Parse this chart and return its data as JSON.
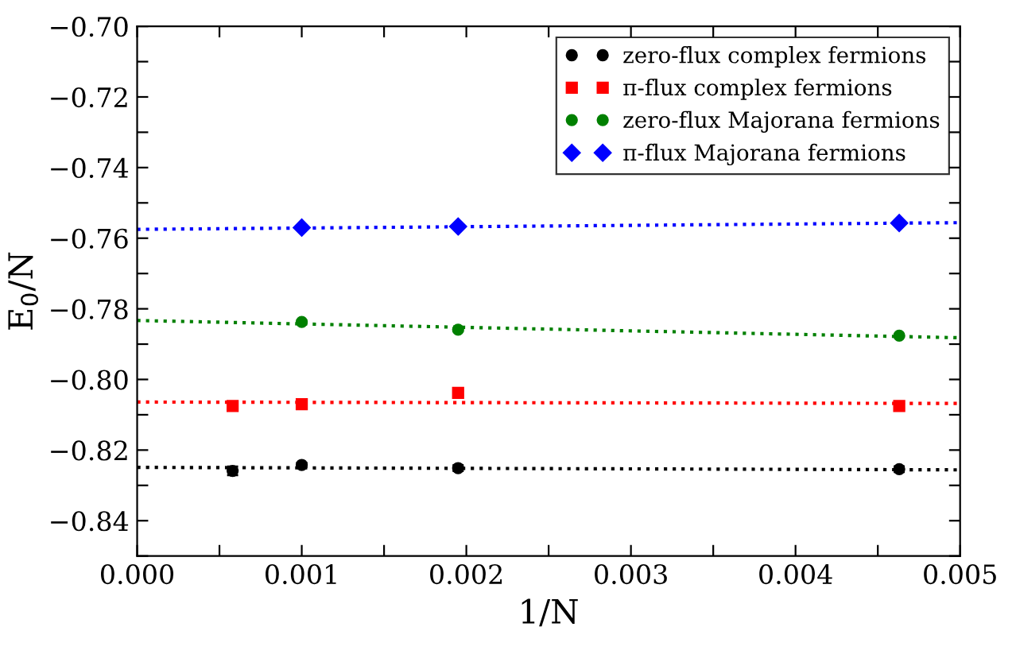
{
  "chart_data": {
    "type": "scatter",
    "xlabel": "1/N",
    "ylabel": "E$_{0}$/N",
    "xlim": [
      0.0,
      0.005
    ],
    "ylim": [
      -0.85,
      -0.7
    ],
    "xticks": [
      {
        "value": 0.0,
        "label": "0.000"
      },
      {
        "value": 0.0005,
        "label": null
      },
      {
        "value": 0.001,
        "label": "0.001"
      },
      {
        "value": 0.0015,
        "label": null
      },
      {
        "value": 0.002,
        "label": "0.002"
      },
      {
        "value": 0.0025,
        "label": null
      },
      {
        "value": 0.003,
        "label": "0.003"
      },
      {
        "value": 0.0035,
        "label": null
      },
      {
        "value": 0.004,
        "label": "0.004"
      },
      {
        "value": 0.0045,
        "label": null
      },
      {
        "value": 0.005,
        "label": "0.005"
      }
    ],
    "yticks": [
      {
        "value": -0.85,
        "label": null
      },
      {
        "value": -0.84,
        "label": "−0.84"
      },
      {
        "value": -0.83,
        "label": null
      },
      {
        "value": -0.82,
        "label": "−0.82"
      },
      {
        "value": -0.81,
        "label": null
      },
      {
        "value": -0.8,
        "label": "−0.80"
      },
      {
        "value": -0.79,
        "label": null
      },
      {
        "value": -0.78,
        "label": "−0.78"
      },
      {
        "value": -0.77,
        "label": null
      },
      {
        "value": -0.76,
        "label": "−0.76"
      },
      {
        "value": -0.75,
        "label": null
      },
      {
        "value": -0.74,
        "label": "−0.74"
      },
      {
        "value": -0.73,
        "label": null
      },
      {
        "value": -0.72,
        "label": "−0.72"
      },
      {
        "value": -0.71,
        "label": null
      },
      {
        "value": -0.7,
        "label": "−0.70"
      }
    ],
    "grid": false,
    "legend": "top right",
    "series": [
      {
        "name": "zero-flux complex fermions",
        "color": "#000000",
        "marker": "circle",
        "x": [
          0.00058,
          0.001,
          0.00195,
          0.00463
        ],
        "values": [
          -0.8259,
          -0.8242,
          -0.8251,
          -0.8254
        ],
        "errors": [
          0.0012,
          0.0006,
          0.0008,
          0.0008
        ]
      },
      {
        "name": "π-flux complex fermions",
        "color": "#ff0000",
        "marker": "square",
        "x": [
          0.00058,
          0.001,
          0.00195,
          0.00463
        ],
        "values": [
          -0.8075,
          -0.807,
          -0.8038,
          -0.8075
        ],
        "errors": [
          0.0008,
          0.0006,
          0.0006,
          0.0006
        ]
      },
      {
        "name": "zero-flux Majorana fermions",
        "color": "#008000",
        "marker": "circle",
        "x": [
          0.001,
          0.00195,
          0.00463
        ],
        "values": [
          -0.7837,
          -0.7859,
          -0.7876
        ],
        "errors": [
          0.0004,
          0.0004,
          0.0004
        ]
      },
      {
        "name": "π-flux Majorana fermions",
        "color": "#0000ff",
        "marker": "diamond",
        "x": [
          0.001,
          0.00195,
          0.00463
        ],
        "values": [
          -0.757,
          -0.7567,
          -0.7557
        ],
        "errors": [
          0.0004,
          0.0004,
          0.0004
        ]
      },
      {
        "type": "line",
        "line_style": "dotted",
        "color": "#000000",
        "x": [
          0.0,
          0.005
        ],
        "values": [
          -0.8249,
          -0.8256
        ]
      },
      {
        "type": "line",
        "line_style": "dotted",
        "color": "#ff0000",
        "x": [
          0.0,
          0.005
        ],
        "values": [
          -0.8064,
          -0.8068
        ]
      },
      {
        "type": "line",
        "line_style": "dotted",
        "color": "#008000",
        "x": [
          0.0,
          0.005
        ],
        "values": [
          -0.7833,
          -0.7882
        ]
      },
      {
        "type": "line",
        "line_style": "dotted",
        "color": "#0000ff",
        "x": [
          0.0,
          0.005
        ],
        "values": [
          -0.7575,
          -0.7556
        ]
      }
    ]
  }
}
